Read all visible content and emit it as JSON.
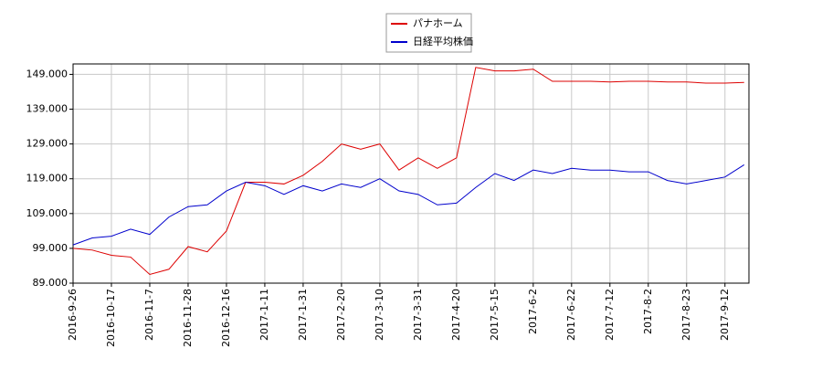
{
  "chart_data": {
    "type": "line",
    "categories": [
      "2016-9-26",
      null,
      "2016-10-17",
      null,
      "2016-11-7",
      null,
      "2016-11-28",
      null,
      "2016-12-16",
      null,
      "2017-1-11",
      null,
      "2017-1-31",
      null,
      "2017-2-20",
      null,
      "2017-3-10",
      null,
      "2017-3-31",
      null,
      "2017-4-20",
      null,
      "2017-5-15",
      null,
      "2017-6-2",
      null,
      "2017-6-22",
      null,
      "2017-7-12",
      null,
      "2017-8-2",
      null,
      "2017-8-23",
      null,
      "2017-9-12",
      null
    ],
    "series": [
      {
        "name": "パナホーム",
        "color": "#dd0000",
        "values": [
          99000,
          98500,
          97000,
          96500,
          91500,
          93000,
          99500,
          98000,
          104000,
          118000,
          118000,
          117500,
          120000,
          124000,
          129000,
          127500,
          129000,
          121500,
          125000,
          122000,
          125000,
          151000,
          150000,
          150000,
          150500,
          147000,
          147000,
          147000,
          146800,
          147000,
          147000,
          146800,
          146800,
          146500,
          146500,
          146700
        ]
      },
      {
        "name": "日経平均株価",
        "color": "#0000cc",
        "values": [
          100000,
          102000,
          102500,
          104500,
          103000,
          108000,
          111000,
          111500,
          115500,
          118000,
          117000,
          114500,
          117000,
          115500,
          117500,
          116500,
          119000,
          115500,
          114500,
          111500,
          112000,
          116500,
          120500,
          118500,
          121500,
          120500,
          122000,
          121500,
          121500,
          121000,
          121000,
          118500,
          117500,
          118500,
          119500,
          123000
        ]
      }
    ],
    "ylim": [
      89000,
      152000
    ],
    "yticks": [
      {
        "value": 89000,
        "label": "89.000"
      },
      {
        "value": 99000,
        "label": "99.000"
      },
      {
        "value": 109000,
        "label": "109.000"
      },
      {
        "value": 119000,
        "label": "119.000"
      },
      {
        "value": 129000,
        "label": "129.000"
      },
      {
        "value": 139000,
        "label": "139.000"
      },
      {
        "value": 149000,
        "label": "149.000"
      }
    ],
    "grid": true
  }
}
